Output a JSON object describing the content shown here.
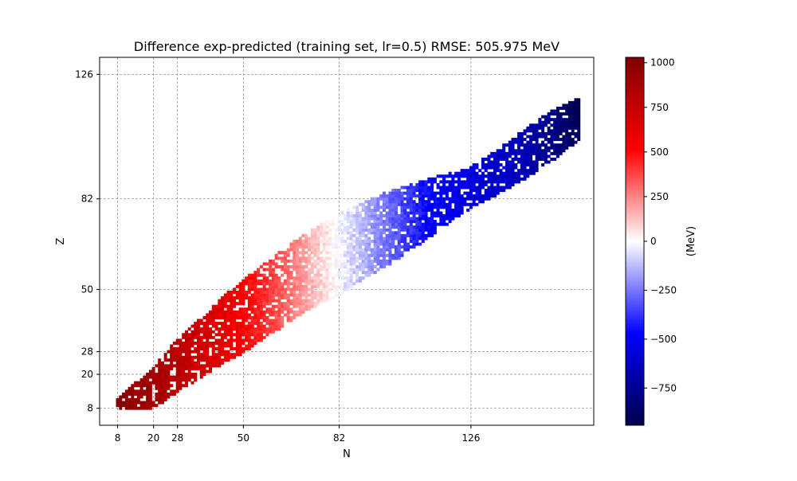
{
  "chart_data": {
    "type": "scatter",
    "title": "Difference exp-predicted (training set, lr=0.5)  RMSE: 505.975 MeV",
    "xlabel": "N",
    "ylabel": "Z",
    "xlim": [
      2,
      167
    ],
    "ylim": [
      2,
      132
    ],
    "xticks": [
      8,
      20,
      28,
      50,
      82,
      126
    ],
    "yticks": [
      8,
      20,
      28,
      50,
      82,
      126
    ],
    "grid": true,
    "grid_style": "dashed-gray",
    "marker": "square",
    "series": [
      {
        "nuclide_band": [
          {
            "N": 8,
            "Z_min": 8,
            "Z_max": 11
          },
          {
            "N": 20,
            "Z_min": 8,
            "Z_max": 22
          },
          {
            "N": 28,
            "Z_min": 14,
            "Z_max": 32
          },
          {
            "N": 40,
            "Z_min": 22,
            "Z_max": 44
          },
          {
            "N": 50,
            "Z_min": 28,
            "Z_max": 53
          },
          {
            "N": 60,
            "Z_min": 35,
            "Z_max": 61
          },
          {
            "N": 70,
            "Z_min": 42,
            "Z_max": 69
          },
          {
            "N": 82,
            "Z_min": 48,
            "Z_max": 76
          },
          {
            "N": 90,
            "Z_min": 54,
            "Z_max": 80
          },
          {
            "N": 100,
            "Z_min": 60,
            "Z_max": 85
          },
          {
            "N": 110,
            "Z_min": 67,
            "Z_max": 88
          },
          {
            "N": 120,
            "Z_min": 75,
            "Z_max": 91
          },
          {
            "N": 126,
            "Z_min": 79,
            "Z_max": 93
          },
          {
            "N": 135,
            "Z_min": 84,
            "Z_max": 99
          },
          {
            "N": 145,
            "Z_min": 90,
            "Z_max": 107
          },
          {
            "N": 155,
            "Z_min": 97,
            "Z_max": 114
          },
          {
            "N": 162,
            "Z_min": 103,
            "Z_max": 117
          }
        ],
        "value_along_N": [
          {
            "N": 8,
            "MeV": 1000
          },
          {
            "N": 30,
            "MeV": 780
          },
          {
            "N": 48,
            "MeV": 560
          },
          {
            "N": 65,
            "MeV": 300
          },
          {
            "N": 80,
            "MeV": 20
          },
          {
            "N": 95,
            "MeV": -220
          },
          {
            "N": 112,
            "MeV": -470
          },
          {
            "N": 130,
            "MeV": -580
          },
          {
            "N": 145,
            "MeV": -680
          },
          {
            "N": 162,
            "MeV": -920
          }
        ]
      }
    ],
    "colorbar": {
      "label": "(MeV)",
      "min": -940,
      "max": 1030,
      "ticks": [
        1000,
        750,
        500,
        250,
        0,
        -250,
        -500,
        -750
      ],
      "tick_labels": [
        "1000",
        "750",
        "500",
        "250",
        "0",
        "−250",
        "−500",
        "−750"
      ],
      "colormap": "seismic",
      "colors": [
        "#00004c",
        "#0000ff",
        "#ffffff",
        "#ff0000",
        "#7f0000"
      ]
    }
  }
}
